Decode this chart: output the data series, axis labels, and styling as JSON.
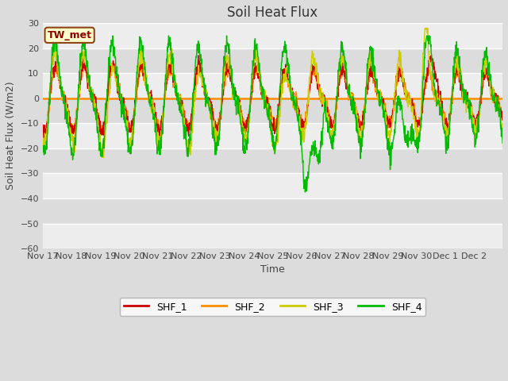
{
  "title": "Soil Heat Flux",
  "xlabel": "Time",
  "ylabel": "Soil Heat Flux (W/m2)",
  "ylim": [
    -60,
    30
  ],
  "yticks": [
    -60,
    -50,
    -40,
    -30,
    -20,
    -10,
    0,
    10,
    20,
    30
  ],
  "annotation_label": "TW_met",
  "annotation_color": "#8B0000",
  "annotation_bg": "#FFFFCC",
  "annotation_border": "#8B4513",
  "line_colors": {
    "SHF_1": "#CC0000",
    "SHF_2": "#FF8C00",
    "SHF_3": "#CCCC00",
    "SHF_4": "#00BB00"
  },
  "background_color": "#DCDCDC",
  "plot_bg_color": "#DCDCDC",
  "grid_color": "#FFFFFF",
  "zero_line_color": "#FF8C00",
  "title_fontsize": 12,
  "axis_label_fontsize": 9,
  "tick_fontsize": 8,
  "legend_fontsize": 9,
  "x_tick_labels": [
    "Nov 17",
    "Nov 18",
    "Nov 19",
    "Nov 20",
    "Nov 21",
    "Nov 22",
    "Nov 23",
    "Nov 24",
    "Nov 25",
    "Nov 26",
    "Nov 27",
    "Nov 28",
    "Nov 29",
    "Nov 30",
    "Dec 1",
    "Dec 2"
  ]
}
